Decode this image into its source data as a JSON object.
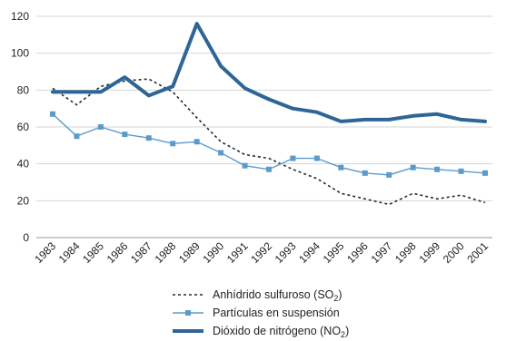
{
  "chart_data": {
    "type": "line",
    "title": "",
    "xlabel": "",
    "ylabel": "",
    "ylim": [
      0,
      120
    ],
    "yticks": [
      0,
      20,
      40,
      60,
      80,
      100,
      120
    ],
    "grid": "horizontal",
    "legend_position": "bottom",
    "x": [
      "1983",
      "1984",
      "1985",
      "1986",
      "1987",
      "1988",
      "1989",
      "1990",
      "1991",
      "1992",
      "1993",
      "1994",
      "1995",
      "1996",
      "1997",
      "1998",
      "1999",
      "2000",
      "2001"
    ],
    "series": [
      {
        "name": "Anhídrido sulfuroso (SO",
        "name_sub": "2",
        "name_suffix": ")",
        "style": "dotted",
        "color": "#1a2b3c",
        "values": [
          81,
          72,
          82,
          85,
          86,
          79,
          65,
          52,
          45,
          43,
          37,
          32,
          24,
          21,
          18,
          24,
          21,
          23,
          19
        ]
      },
      {
        "name": "Partículas en suspensión",
        "style": "marker",
        "color": "#5b9bc9",
        "values": [
          67,
          55,
          60,
          56,
          54,
          51,
          52,
          46,
          39,
          37,
          43,
          43,
          38,
          35,
          34,
          38,
          37,
          36,
          35
        ]
      },
      {
        "name": "Dióxido de nitrógeno (NO",
        "name_sub": "2",
        "name_suffix": ")",
        "style": "thick",
        "color": "#2f6596",
        "values": [
          79,
          79,
          79,
          87,
          77,
          82,
          116,
          93,
          81,
          75,
          70,
          68,
          63,
          64,
          64,
          66,
          67,
          64,
          63
        ]
      }
    ]
  }
}
